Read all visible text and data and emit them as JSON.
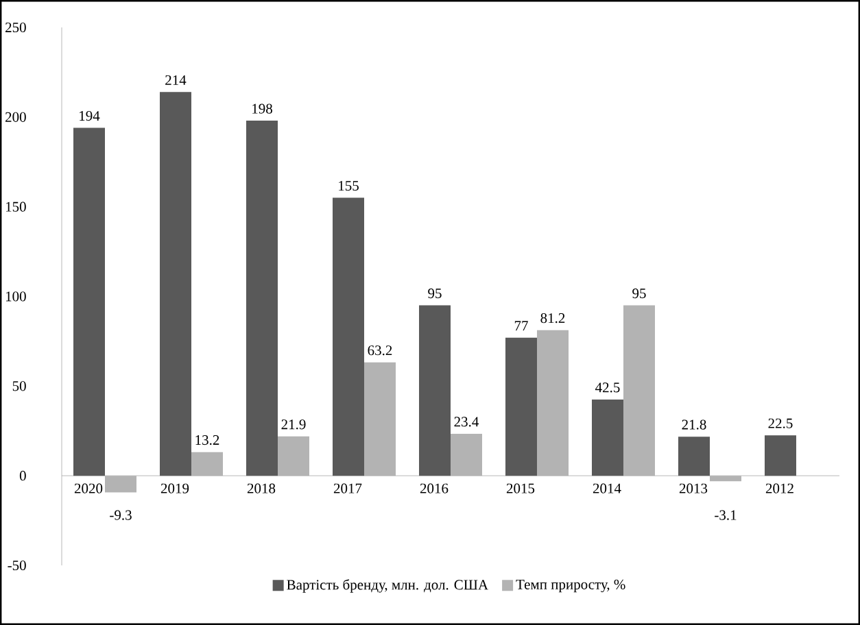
{
  "chart_data": {
    "type": "bar",
    "categories": [
      "2020",
      "2019",
      "2018",
      "2017",
      "2016",
      "2015",
      "2014",
      "2013",
      "2012"
    ],
    "series": [
      {
        "name": "Вартість бренду, млн. дол. США",
        "color": "#595959",
        "values": [
          194,
          214,
          198,
          155,
          95,
          77,
          42.5,
          21.8,
          22.5
        ]
      },
      {
        "name": "Темп приросту, %",
        "color": "#b3b3b3",
        "values": [
          -9.3,
          13.2,
          21.9,
          63.2,
          23.4,
          81.2,
          95,
          -3.1,
          null
        ]
      }
    ],
    "ylim": [
      -50,
      250
    ],
    "yticks": [
      -50,
      0,
      50,
      100,
      150,
      200,
      250
    ],
    "data_labels": true,
    "legend": "bottom",
    "grid": false
  }
}
